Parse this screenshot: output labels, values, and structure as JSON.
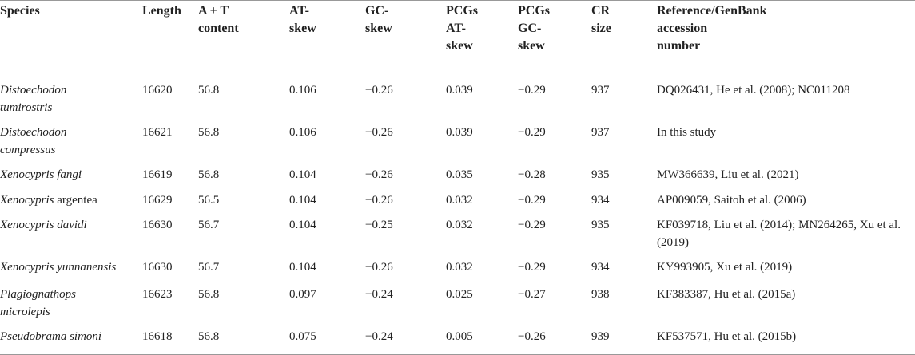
{
  "table": {
    "header": [
      "Species",
      "Length",
      "A + T content",
      "AT-skew",
      "GC-skew",
      "PCGs AT-skew",
      "PCGs GC-skew",
      "CR size",
      "Reference/GenBank accession number"
    ],
    "rows": [
      [
        {
          "genus": "Distoechodon",
          "epithet": "tumirostris"
        },
        "16620",
        "56.8",
        "0.106",
        "−0.26",
        "0.039",
        "−0.29",
        "937",
        "DQ026431, He et al. (2008); NC011208"
      ],
      [
        {
          "genus": "Distoechodon",
          "epithet": "compressus"
        },
        "16621",
        "56.8",
        "0.106",
        "−0.26",
        "0.039",
        "−0.29",
        "937",
        "In this study"
      ],
      [
        {
          "genus": "Xenocypris",
          "epithet": "fangi"
        },
        "16619",
        "56.8",
        "0.104",
        "−0.26",
        "0.035",
        "−0.28",
        "935",
        "MW366639, Liu et al. (2021)"
      ],
      [
        {
          "genus": "Xenocypris",
          "epithet": "argentea"
        },
        "16629",
        "56.5",
        "0.104",
        "−0.26",
        "0.032",
        "−0.29",
        "934",
        "AP009059, Saitoh et al. (2006)"
      ],
      [
        {
          "genus": "Xenocypris",
          "epithet": "davidi"
        },
        "16630",
        "56.7",
        "0.104",
        "−0.25",
        "0.032",
        "−0.29",
        "935",
        "KF039718, Liu et al. (2014); MN264265, Xu et al. (2019)"
      ],
      [
        {
          "genus": "Xenocypris",
          "epithet": "yunnanensis"
        },
        "16630",
        "56.7",
        "0.104",
        "−0.26",
        "0.032",
        "−0.29",
        "934",
        "KY993905, Xu et al. (2019)"
      ],
      [
        {
          "genus": "Plagiognathops",
          "epithet": "microlepis"
        },
        "16623",
        "56.8",
        "0.097",
        "−0.24",
        "0.025",
        "−0.27",
        "938",
        "KF383387, Hu et al. (2015a)"
      ],
      [
        {
          "genus": "Pseudobrama",
          "epithet": "simoni"
        },
        "16618",
        "56.8",
        "0.075",
        "−0.24",
        "0.005",
        "−0.26",
        "939",
        "KF537571, Hu et al. (2015b)"
      ]
    ]
  }
}
